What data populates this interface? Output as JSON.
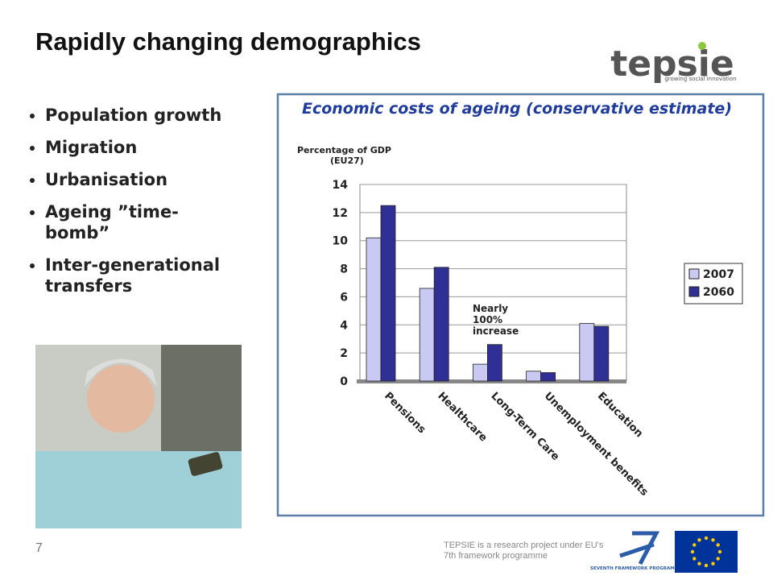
{
  "header": {
    "title": "Rapidly changing demographics"
  },
  "logo": {
    "name": "tepsie",
    "tagline": "growing social innovation"
  },
  "bullets": [
    "Population growth",
    "Migration",
    "Urbanisation",
    "Ageing ”time-bomb”",
    "Inter-generational transfers"
  ],
  "chart_data": {
    "type": "bar",
    "title": "Economic costs of ageing (conservative estimate)",
    "ylabel": [
      "Percentage of GDP",
      "(EU27)"
    ],
    "categories": [
      "Pensions",
      "Healthcare",
      "Long-Term Care",
      "Unemployment benefits",
      "Education"
    ],
    "series": [
      {
        "name": "2007",
        "color": "#c9c9f3",
        "values": [
          10.2,
          6.6,
          1.2,
          0.7,
          4.1
        ]
      },
      {
        "name": "2060",
        "color": "#2f2f96",
        "values": [
          12.5,
          8.1,
          2.6,
          0.6,
          3.9
        ]
      }
    ],
    "ylim": [
      0,
      14
    ],
    "yticks": [
      0,
      2,
      4,
      6,
      8,
      10,
      12,
      14
    ],
    "grid": true,
    "legend": "right",
    "annotation": [
      "Nearly",
      "100%",
      "increase"
    ]
  },
  "footer": {
    "page": "7",
    "note": "TEPSIE is a research project under EU's 7th framework programme",
    "programme": "SEVENTH FRAMEWORK PROGRAMME"
  }
}
